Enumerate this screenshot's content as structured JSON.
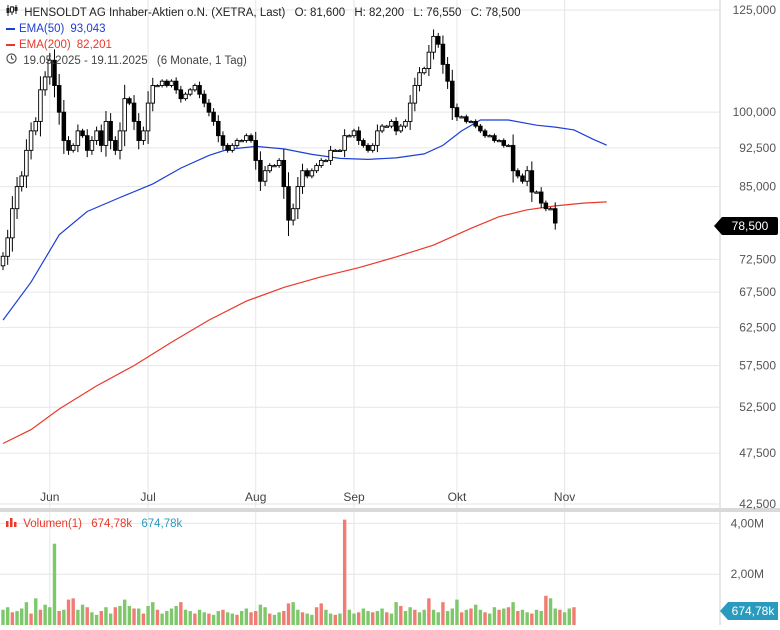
{
  "header": {
    "title": "HENSOLDT AG Inhaber-Aktien o.N. (XETRA, Last)",
    "ohlc": [
      {
        "label": "O:",
        "value": "81,600"
      },
      {
        "label": "H:",
        "value": "82,200"
      },
      {
        "label": "L:",
        "value": "76,550"
      },
      {
        "label": "C:",
        "value": "78,500"
      }
    ],
    "date_range": "19.05.2025 - 19.11.2025",
    "period": "(6 Monate, 1 Tag)",
    "icon": "candlestick-icon",
    "clock_icon": "clock-icon"
  },
  "indicators": {
    "ema50": {
      "label": "EMA(50)",
      "value": "93,043",
      "color": "#1d3fd6"
    },
    "ema200": {
      "label": "EMA(200)",
      "value": "82,201",
      "color": "#e8392b"
    }
  },
  "price_badge": "78,500",
  "volume": {
    "label": "Volumen(1)",
    "value_red": "674,78k",
    "value_blue": "674,78k",
    "badge": "674,78k",
    "icon": "bar-chart-icon",
    "axis_ticks": [
      {
        "v": 4000000,
        "label": "4,00M"
      },
      {
        "v": 2000000,
        "label": "2,00M"
      }
    ]
  },
  "colors": {
    "up": "#ffffff",
    "down": "#000000",
    "vol_up": "#7dc86b",
    "vol_down": "#f07c74",
    "grid": "#e6e6e6"
  },
  "chart_data": {
    "type": "candlestick",
    "title": "HENSOLDT AG Inhaber-Aktien o.N. (XETRA, Last)",
    "y_scale": "log",
    "ylim": [
      42500,
      127000
    ],
    "y_ticks": [
      {
        "v": 125000,
        "label": "125,000"
      },
      {
        "v": 100000,
        "label": "100,000"
      },
      {
        "v": 92500,
        "label": "92,500"
      },
      {
        "v": 85000,
        "label": "85,000"
      },
      {
        "v": 72500,
        "label": "72,500"
      },
      {
        "v": 67500,
        "label": "67,500"
      },
      {
        "v": 62500,
        "label": "62,500"
      },
      {
        "v": 57500,
        "label": "57,500"
      },
      {
        "v": 52500,
        "label": "52,500"
      },
      {
        "v": 47500,
        "label": "47,500"
      },
      {
        "v": 42500,
        "label": "42,500"
      }
    ],
    "x_ticks": [
      {
        "i": 10,
        "label": "Jun"
      },
      {
        "i": 31,
        "label": "Jul"
      },
      {
        "i": 54,
        "label": "Aug"
      },
      {
        "i": 75,
        "label": "Sep"
      },
      {
        "i": 97,
        "label": "Okt"
      },
      {
        "i": 120,
        "label": "Nov"
      }
    ],
    "candles_close": [
      73,
      76,
      81,
      85,
      87,
      92,
      96,
      98,
      105,
      108,
      112,
      106,
      100,
      94,
      92,
      93,
      96,
      95,
      92,
      94,
      96,
      93,
      98,
      94,
      92,
      96,
      103,
      102,
      98,
      94,
      96,
      102,
      106,
      106,
      107,
      106,
      107,
      105,
      103,
      104,
      105,
      106,
      104,
      102,
      100,
      98,
      95,
      93,
      92,
      93,
      94,
      94,
      95,
      94,
      90,
      86,
      88,
      89,
      89,
      90,
      85,
      79,
      81,
      85,
      88,
      87,
      88,
      89,
      90,
      90,
      92,
      92,
      92,
      95,
      95,
      96,
      94,
      93,
      92,
      93,
      96,
      97,
      97,
      98,
      96,
      97,
      98,
      102,
      106,
      109,
      110,
      114,
      118,
      116,
      111,
      107,
      101,
      99,
      99,
      98,
      98,
      97,
      96,
      95,
      95,
      94,
      94,
      93,
      93,
      88,
      87,
      86,
      88,
      84,
      84,
      82,
      81,
      81,
      78.5
    ],
    "volume_scale_max": 4450000,
    "volume": [
      {
        "v": 600000,
        "up": true
      },
      {
        "v": 700000,
        "up": true
      },
      {
        "v": 500000,
        "up": false
      },
      {
        "v": 550000,
        "up": true
      },
      {
        "v": 650000,
        "up": true
      },
      {
        "v": 900000,
        "up": true
      },
      {
        "v": 450000,
        "up": false
      },
      {
        "v": 1050000,
        "up": true
      },
      {
        "v": 600000,
        "up": false
      },
      {
        "v": 800000,
        "up": true
      },
      {
        "v": 700000,
        "up": true
      },
      {
        "v": 3200000,
        "up": true
      },
      {
        "v": 550000,
        "up": false
      },
      {
        "v": 600000,
        "up": true
      },
      {
        "v": 1000000,
        "up": false
      },
      {
        "v": 1050000,
        "up": false
      },
      {
        "v": 600000,
        "up": true
      },
      {
        "v": 800000,
        "up": true
      },
      {
        "v": 700000,
        "up": false
      },
      {
        "v": 500000,
        "up": true
      },
      {
        "v": 400000,
        "up": true
      },
      {
        "v": 550000,
        "up": false
      },
      {
        "v": 700000,
        "up": true
      },
      {
        "v": 450000,
        "up": true
      },
      {
        "v": 700000,
        "up": false
      },
      {
        "v": 750000,
        "up": true
      },
      {
        "v": 1000000,
        "up": true
      },
      {
        "v": 750000,
        "up": true
      },
      {
        "v": 650000,
        "up": false
      },
      {
        "v": 650000,
        "up": true
      },
      {
        "v": 450000,
        "up": false
      },
      {
        "v": 750000,
        "up": true
      },
      {
        "v": 900000,
        "up": true
      },
      {
        "v": 600000,
        "up": false
      },
      {
        "v": 450000,
        "up": true
      },
      {
        "v": 550000,
        "up": true
      },
      {
        "v": 650000,
        "up": true
      },
      {
        "v": 750000,
        "up": true
      },
      {
        "v": 900000,
        "up": false
      },
      {
        "v": 600000,
        "up": true
      },
      {
        "v": 550000,
        "up": true
      },
      {
        "v": 450000,
        "up": false
      },
      {
        "v": 600000,
        "up": true
      },
      {
        "v": 500000,
        "up": true
      },
      {
        "v": 450000,
        "up": false
      },
      {
        "v": 400000,
        "up": true
      },
      {
        "v": 550000,
        "up": true
      },
      {
        "v": 600000,
        "up": false
      },
      {
        "v": 500000,
        "up": true
      },
      {
        "v": 450000,
        "up": true
      },
      {
        "v": 400000,
        "up": false
      },
      {
        "v": 550000,
        "up": true
      },
      {
        "v": 650000,
        "up": true
      },
      {
        "v": 500000,
        "up": false
      },
      {
        "v": 550000,
        "up": false
      },
      {
        "v": 800000,
        "up": true
      },
      {
        "v": 700000,
        "up": true
      },
      {
        "v": 450000,
        "up": false
      },
      {
        "v": 400000,
        "up": true
      },
      {
        "v": 500000,
        "up": true
      },
      {
        "v": 550000,
        "up": false
      },
      {
        "v": 850000,
        "up": false
      },
      {
        "v": 900000,
        "up": true
      },
      {
        "v": 600000,
        "up": true
      },
      {
        "v": 500000,
        "up": false
      },
      {
        "v": 450000,
        "up": true
      },
      {
        "v": 400000,
        "up": true
      },
      {
        "v": 700000,
        "up": false
      },
      {
        "v": 850000,
        "up": false
      },
      {
        "v": 600000,
        "up": true
      },
      {
        "v": 450000,
        "up": true
      },
      {
        "v": 400000,
        "up": false
      },
      {
        "v": 450000,
        "up": true
      },
      {
        "v": 4150000,
        "up": false
      },
      {
        "v": 600000,
        "up": true
      },
      {
        "v": 450000,
        "up": true
      },
      {
        "v": 500000,
        "up": false
      },
      {
        "v": 650000,
        "up": true
      },
      {
        "v": 550000,
        "up": true
      },
      {
        "v": 500000,
        "up": false
      },
      {
        "v": 550000,
        "up": true
      },
      {
        "v": 650000,
        "up": true
      },
      {
        "v": 500000,
        "up": false
      },
      {
        "v": 450000,
        "up": true
      },
      {
        "v": 900000,
        "up": true
      },
      {
        "v": 750000,
        "up": false
      },
      {
        "v": 550000,
        "up": true
      },
      {
        "v": 700000,
        "up": true
      },
      {
        "v": 600000,
        "up": false
      },
      {
        "v": 500000,
        "up": true
      },
      {
        "v": 600000,
        "up": true
      },
      {
        "v": 1050000,
        "up": false
      },
      {
        "v": 600000,
        "up": true
      },
      {
        "v": 500000,
        "up": true
      },
      {
        "v": 900000,
        "up": false
      },
      {
        "v": 550000,
        "up": true
      },
      {
        "v": 650000,
        "up": true
      },
      {
        "v": 1000000,
        "up": true
      },
      {
        "v": 500000,
        "up": false
      },
      {
        "v": 600000,
        "up": true
      },
      {
        "v": 650000,
        "up": false
      },
      {
        "v": 800000,
        "up": true
      },
      {
        "v": 600000,
        "up": true
      },
      {
        "v": 500000,
        "up": false
      },
      {
        "v": 450000,
        "up": true
      },
      {
        "v": 700000,
        "up": true
      },
      {
        "v": 600000,
        "up": false
      },
      {
        "v": 650000,
        "up": true
      },
      {
        "v": 700000,
        "up": false
      },
      {
        "v": 900000,
        "up": true
      },
      {
        "v": 550000,
        "up": false
      },
      {
        "v": 600000,
        "up": true
      },
      {
        "v": 500000,
        "up": true
      },
      {
        "v": 450000,
        "up": false
      },
      {
        "v": 600000,
        "up": true
      },
      {
        "v": 550000,
        "up": true
      },
      {
        "v": 1150000,
        "up": false
      },
      {
        "v": 1050000,
        "up": true
      },
      {
        "v": 650000,
        "up": true
      },
      {
        "v": 600000,
        "up": false
      },
      {
        "v": 500000,
        "up": true
      },
      {
        "v": 650000,
        "up": true
      },
      {
        "v": 700000,
        "up": false
      }
    ],
    "ema50": [
      {
        "i": 0,
        "v": 63500
      },
      {
        "i": 6,
        "v": 69000
      },
      {
        "i": 12,
        "v": 76500
      },
      {
        "i": 18,
        "v": 80500
      },
      {
        "i": 25,
        "v": 83000
      },
      {
        "i": 32,
        "v": 85500
      },
      {
        "i": 38,
        "v": 88500
      },
      {
        "i": 44,
        "v": 91000
      },
      {
        "i": 48,
        "v": 92200
      },
      {
        "i": 54,
        "v": 92800
      },
      {
        "i": 60,
        "v": 92300
      },
      {
        "i": 66,
        "v": 91200
      },
      {
        "i": 72,
        "v": 90400
      },
      {
        "i": 78,
        "v": 90200
      },
      {
        "i": 84,
        "v": 90500
      },
      {
        "i": 90,
        "v": 91300
      },
      {
        "i": 94,
        "v": 93000
      },
      {
        "i": 98,
        "v": 96000
      },
      {
        "i": 102,
        "v": 98300
      },
      {
        "i": 108,
        "v": 98300
      },
      {
        "i": 114,
        "v": 97200
      },
      {
        "i": 118,
        "v": 96800
      },
      {
        "i": 122,
        "v": 96200
      },
      {
        "i": 126,
        "v": 94300
      },
      {
        "i": 129,
        "v": 93043
      }
    ],
    "ema200": [
      {
        "i": 0,
        "v": 48500
      },
      {
        "i": 6,
        "v": 50000
      },
      {
        "i": 12,
        "v": 52300
      },
      {
        "i": 20,
        "v": 55000
      },
      {
        "i": 28,
        "v": 57500
      },
      {
        "i": 36,
        "v": 60500
      },
      {
        "i": 44,
        "v": 63500
      },
      {
        "i": 52,
        "v": 66200
      },
      {
        "i": 60,
        "v": 68200
      },
      {
        "i": 68,
        "v": 69800
      },
      {
        "i": 76,
        "v": 71200
      },
      {
        "i": 84,
        "v": 72900
      },
      {
        "i": 92,
        "v": 74800
      },
      {
        "i": 100,
        "v": 77600
      },
      {
        "i": 106,
        "v": 79600
      },
      {
        "i": 112,
        "v": 80800
      },
      {
        "i": 118,
        "v": 81500
      },
      {
        "i": 124,
        "v": 82000
      },
      {
        "i": 129,
        "v": 82201
      }
    ]
  }
}
